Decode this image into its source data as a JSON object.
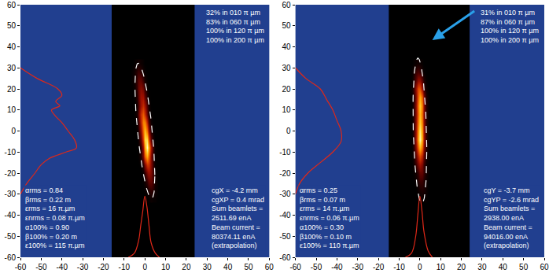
{
  "chart_data": [
    {
      "type": "heatmap",
      "xlim": [
        -60,
        60
      ],
      "ylim": [
        -60,
        60
      ],
      "xticks": [
        -60,
        -50,
        -40,
        -30,
        -20,
        -10,
        0,
        10,
        20,
        30,
        40,
        50,
        60
      ],
      "yticks": [
        -60,
        -50,
        -40,
        -30,
        -20,
        -10,
        0,
        10,
        20,
        30,
        40,
        50,
        60
      ],
      "grid": false,
      "scan_window": [
        -16,
        24
      ],
      "density": {
        "x": [
          -6,
          -5,
          -4,
          -3,
          -2,
          -1,
          0,
          1,
          2,
          3,
          4,
          5,
          6
        ],
        "y": [
          -32,
          -28,
          -24,
          -20,
          -16,
          -12,
          -8,
          -4,
          0,
          4,
          8,
          12,
          16,
          20,
          24,
          28,
          32
        ],
        "zlim": [
          0,
          100
        ],
        "z": [
          [
            0,
            0,
            0,
            0,
            0,
            0,
            0,
            1,
            1,
            2,
            1,
            1,
            0
          ],
          [
            0,
            0,
            0,
            0,
            0,
            0,
            1,
            2,
            6,
            8,
            6,
            2,
            1
          ],
          [
            0,
            0,
            0,
            0,
            0,
            1,
            3,
            9,
            17,
            17,
            9,
            3,
            1
          ],
          [
            0,
            0,
            0,
            0,
            0,
            2,
            9,
            22,
            30,
            22,
            9,
            2,
            0
          ],
          [
            0,
            0,
            0,
            0,
            1,
            7,
            23,
            42,
            42,
            23,
            7,
            1,
            0
          ],
          [
            0,
            0,
            0,
            1,
            5,
            23,
            56,
            75,
            56,
            23,
            5,
            1,
            0
          ],
          [
            0,
            0,
            0,
            1,
            7,
            31,
            74,
            100,
            74,
            31,
            7,
            1,
            0
          ],
          [
            0,
            0,
            0,
            3,
            15,
            48,
            88,
            88,
            48,
            15,
            3,
            0,
            0
          ],
          [
            0,
            0,
            1,
            6,
            25,
            59,
            80,
            59,
            25,
            6,
            1,
            0,
            0
          ],
          [
            0,
            0,
            2,
            11,
            36,
            65,
            65,
            36,
            11,
            2,
            0,
            0,
            0
          ],
          [
            0,
            1,
            4,
            17,
            41,
            55,
            41,
            17,
            4,
            1,
            0,
            0,
            0
          ],
          [
            0,
            0,
            3,
            12,
            30,
            40,
            30,
            12,
            3,
            0,
            0,
            0,
            0
          ],
          [
            0,
            1,
            5,
            16,
            30,
            30,
            16,
            5,
            1,
            0,
            0,
            0,
            0
          ],
          [
            0,
            2,
            8,
            19,
            25,
            19,
            8,
            2,
            0,
            0,
            0,
            0,
            0
          ],
          [
            1,
            3,
            9,
            17,
            17,
            9,
            3,
            1,
            0,
            0,
            0,
            0,
            0
          ],
          [
            1,
            3,
            7,
            10,
            7,
            3,
            1,
            0,
            0,
            0,
            0,
            0,
            0
          ],
          [
            0,
            1,
            2,
            3,
            2,
            1,
            0,
            0,
            0,
            0,
            0,
            0,
            0
          ]
        ]
      },
      "ellipse": {
        "alpha": 0.9,
        "beta": 0.2,
        "emittance": 115
      },
      "series": [
        {
          "color": "#e02818",
          "x": [
            -60,
            -52,
            -42,
            -40,
            -43,
            -41,
            -45,
            -43,
            -40,
            -37,
            -34,
            -33,
            -38,
            -46,
            -50,
            -53,
            -57,
            -60
          ],
          "y": [
            30,
            25,
            20,
            17,
            14,
            12,
            10,
            7,
            4,
            0,
            -4,
            -8,
            -10,
            -13,
            -16,
            -20,
            -25,
            -30
          ]
        },
        {
          "color": "#e02818",
          "x": [
            -8,
            -5,
            -3,
            -2,
            -1,
            0,
            1,
            2,
            3,
            5,
            7
          ],
          "y": [
            -60,
            -58,
            -52,
            -45,
            -38,
            -31,
            -36,
            -45,
            -53,
            -58,
            -60
          ]
        }
      ],
      "annotations": {
        "fractions": [
          "32% in 010 π µm",
          "83% in 060 π µm",
          "100% in 120 π µm",
          "100% in 200 π µm"
        ],
        "twiss": [
          "αrms = 0.84",
          "βrms = 0.22 m",
          "εrms = 16 π.µm",
          "εnrms = 0.08 π.µm",
          "α100% = 0.90",
          "β100% = 0.20 m",
          "ε100% = 115 π.µm"
        ],
        "centroid": [
          "cgX = -4.2 mm",
          "cgXP = 0.4 mrad",
          "Sum beamlets =",
          "2511.69 enA",
          "Beam current =",
          "80374.11 enA",
          "(extrapolation)"
        ]
      }
    },
    {
      "type": "heatmap",
      "xlim": [
        -60,
        60
      ],
      "ylim": [
        -60,
        60
      ],
      "xticks": [
        -60,
        -50,
        -40,
        -30,
        -20,
        -10,
        0,
        10,
        20,
        30,
        40,
        50,
        60
      ],
      "yticks": [
        -60,
        -50,
        -40,
        -30,
        -20,
        -10,
        0,
        10,
        20,
        30,
        40,
        50,
        60
      ],
      "grid": false,
      "scan_window": [
        -15,
        24
      ],
      "density": {
        "x": [
          -6,
          -5,
          -4,
          -3,
          -2,
          -1,
          0,
          1,
          2,
          3,
          4,
          5,
          6
        ],
        "y": [
          -32,
          -28,
          -24,
          -20,
          -16,
          -12,
          -8,
          -4,
          0,
          4,
          8,
          12,
          16,
          20,
          24,
          28,
          32
        ],
        "zlim": [
          0,
          100
        ],
        "z": [
          [
            0,
            0,
            0,
            0,
            0,
            1,
            1,
            2,
            1,
            1,
            0,
            0,
            0
          ],
          [
            0,
            0,
            0,
            0,
            0,
            2,
            4,
            5,
            4,
            2,
            0,
            0,
            0
          ],
          [
            0,
            0,
            0,
            0,
            2,
            5,
            9,
            9,
            5,
            2,
            0,
            0,
            0
          ],
          [
            0,
            0,
            0,
            1,
            3,
            9,
            17,
            17,
            9,
            3,
            1,
            0,
            0
          ],
          [
            0,
            0,
            0,
            2,
            9,
            22,
            30,
            22,
            9,
            2,
            0,
            0,
            0
          ],
          [
            0,
            0,
            1,
            4,
            16,
            37,
            50,
            37,
            16,
            4,
            1,
            0,
            0
          ],
          [
            0,
            0,
            1,
            6,
            25,
            59,
            80,
            59,
            25,
            6,
            1,
            0,
            0
          ],
          [
            0,
            0,
            1,
            7,
            31,
            74,
            100,
            74,
            31,
            7,
            1,
            0,
            0
          ],
          [
            0,
            0,
            1,
            7,
            29,
            70,
            95,
            70,
            29,
            7,
            1,
            0,
            0
          ],
          [
            0,
            0,
            1,
            6,
            26,
            63,
            85,
            63,
            26,
            6,
            1,
            0,
            0
          ],
          [
            0,
            0,
            1,
            6,
            25,
            59,
            80,
            59,
            25,
            6,
            1,
            0,
            0
          ],
          [
            0,
            0,
            1,
            6,
            26,
            63,
            85,
            63,
            26,
            6,
            1,
            0,
            0
          ],
          [
            0,
            0,
            1,
            5,
            23,
            56,
            75,
            56,
            23,
            5,
            1,
            0,
            0
          ],
          [
            0,
            0,
            2,
            9,
            28,
            51,
            51,
            28,
            9,
            2,
            0,
            0,
            0
          ],
          [
            0,
            0,
            1,
            5,
            15,
            28,
            28,
            15,
            5,
            1,
            0,
            0,
            0
          ],
          [
            0,
            0,
            1,
            4,
            9,
            12,
            9,
            4,
            1,
            0,
            0,
            0,
            0
          ],
          [
            0,
            0,
            0,
            1,
            2,
            3,
            2,
            1,
            0,
            0,
            0,
            0,
            0
          ]
        ]
      },
      "ellipse": {
        "alpha": 0.3,
        "beta": 0.1,
        "emittance": 110
      },
      "series": [
        {
          "color": "#e02818",
          "x": [
            -60,
            -55,
            -48,
            -45,
            -42,
            -40,
            -38,
            -38,
            -42,
            -48,
            -54,
            -58,
            -60
          ],
          "y": [
            30,
            25,
            20,
            15,
            10,
            5,
            0,
            -5,
            -10,
            -15,
            -20,
            -25,
            -30
          ]
        },
        {
          "color": "#e02818",
          "x": [
            -7,
            -4,
            -2,
            -1,
            0,
            1,
            2,
            4,
            6
          ],
          "y": [
            -60,
            -58,
            -50,
            -40,
            -31,
            -38,
            -48,
            -57,
            -60
          ]
        }
      ],
      "annotations": {
        "fractions": [
          "31% in 010 π µm",
          "87% in 060 π µm",
          "100% in 120 π µm",
          "100% in 200 π µm"
        ],
        "twiss": [
          "αrms = 0.25",
          "βrms = 0.07 m",
          "εrms = 14 π.µm",
          "εnrms = 0.06 π.µm",
          "α100% = 0.30",
          "β100% = 0.10 m",
          "ε100% = 110 π.µm"
        ],
        "centroid": [
          "cgY = -3.7 mm",
          "cgYP = -2.6 mrad",
          "Sum beamlets =",
          "2938.00 enA",
          "Beam current =",
          "94016.00 enA",
          "(extrapolation)"
        ]
      }
    }
  ]
}
